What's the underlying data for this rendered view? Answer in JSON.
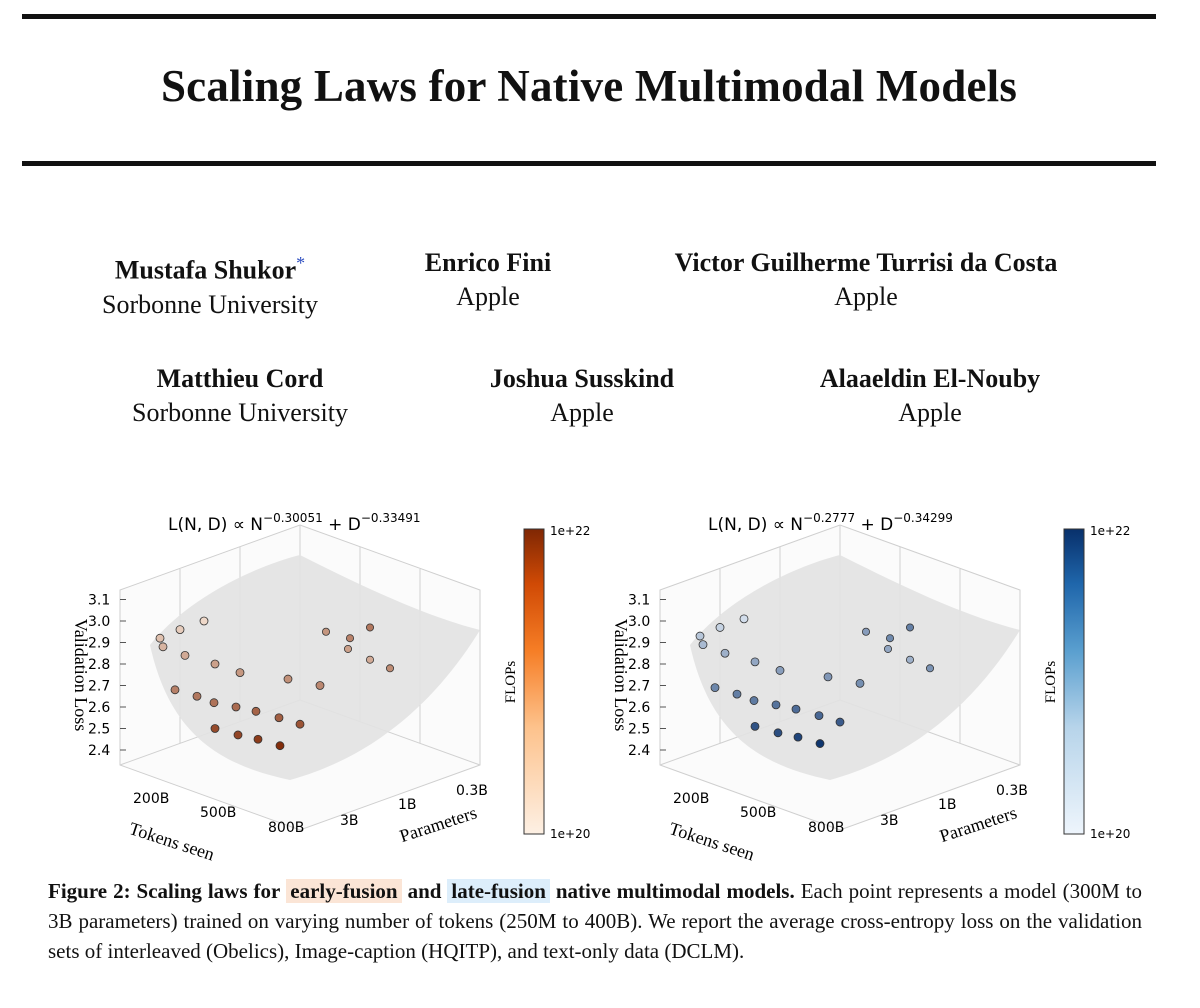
{
  "paper": {
    "title": "Scaling Laws for Native Multimodal Models",
    "authors": [
      {
        "name": "Mustafa Shukor",
        "affiliation": "Sorbonne University",
        "mark": "*"
      },
      {
        "name": "Enrico Fini",
        "affiliation": "Apple"
      },
      {
        "name": "Victor Guilherme Turrisi da Costa",
        "affiliation": "Apple"
      },
      {
        "name": "Matthieu Cord",
        "affiliation": "Sorbonne University"
      },
      {
        "name": "Joshua Susskind",
        "affiliation": "Apple"
      },
      {
        "name": "Alaaeldin El-Nouby",
        "affiliation": "Apple"
      }
    ]
  },
  "caption": {
    "lead": "Figure 2: Scaling laws for",
    "early": "early-fusion",
    "and": "and",
    "late": "late-fusion",
    "tail_bold": "native multimodal models.",
    "body": "Each point represents a model (300M to 3B parameters) trained on varying number of tokens (250M to 400B). We report the average cross-entropy loss on the validation sets of interleaved (Obelics), Image-caption (HQITP), and text-only data (DCLM)."
  },
  "chart_data": [
    {
      "type": "scatter3d",
      "name": "early-fusion",
      "title_expr": {
        "lhs": "L(N, D) ∝ N",
        "exp_n": "−0.30051",
        "mid": " + D",
        "exp_d": "−0.33491"
      },
      "zlabel": "Validation Loss",
      "xlabel": "Tokens seen",
      "ylabel": "Parameters",
      "z_ticks": [
        "2.4",
        "2.5",
        "2.6",
        "2.7",
        "2.8",
        "2.9",
        "3.0",
        "3.1"
      ],
      "x_ticks": [
        "200B",
        "500B",
        "800B"
      ],
      "y_ticks": [
        "0.3B",
        "1B",
        "3B"
      ],
      "colorbar": {
        "label": "FLOPs",
        "max": "1e+22",
        "min": "1e+20",
        "cmap": "orange",
        "color_low": "#fdf0e4",
        "color_high": "#7f2704"
      },
      "points": [
        {
          "loss": 2.42,
          "flops": 0.97
        },
        {
          "loss": 2.45,
          "flops": 0.9
        },
        {
          "loss": 2.47,
          "flops": 0.85
        },
        {
          "loss": 2.5,
          "flops": 0.82
        },
        {
          "loss": 2.52,
          "flops": 0.78
        },
        {
          "loss": 2.55,
          "flops": 0.72
        },
        {
          "loss": 2.58,
          "flops": 0.7
        },
        {
          "loss": 2.6,
          "flops": 0.66
        },
        {
          "loss": 2.62,
          "flops": 0.62
        },
        {
          "loss": 2.65,
          "flops": 0.6
        },
        {
          "loss": 2.68,
          "flops": 0.56
        },
        {
          "loss": 2.7,
          "flops": 0.52
        },
        {
          "loss": 2.73,
          "flops": 0.48
        },
        {
          "loss": 2.76,
          "flops": 0.44
        },
        {
          "loss": 2.8,
          "flops": 0.4
        },
        {
          "loss": 2.84,
          "flops": 0.35
        },
        {
          "loss": 2.88,
          "flops": 0.3
        },
        {
          "loss": 2.92,
          "flops": 0.24
        },
        {
          "loss": 2.96,
          "flops": 0.18
        },
        {
          "loss": 3.0,
          "flops": 0.12
        }
      ]
    },
    {
      "type": "scatter3d",
      "name": "late-fusion",
      "title_expr": {
        "lhs": "L(N, D) ∝ N",
        "exp_n": "−0.2777",
        "mid": " + D",
        "exp_d": "−0.34299"
      },
      "zlabel": "Validation Loss",
      "xlabel": "Tokens seen",
      "ylabel": "Parameters",
      "z_ticks": [
        "2.4",
        "2.5",
        "2.6",
        "2.7",
        "2.8",
        "2.9",
        "3.0",
        "3.1"
      ],
      "x_ticks": [
        "200B",
        "500B",
        "800B"
      ],
      "y_ticks": [
        "0.3B",
        "1B",
        "3B"
      ],
      "colorbar": {
        "label": "FLOPs",
        "max": "1e+22",
        "min": "1e+20",
        "cmap": "blue",
        "color_low": "#eef5fc",
        "color_high": "#08306b"
      },
      "points": [
        {
          "loss": 2.43,
          "flops": 0.97
        },
        {
          "loss": 2.46,
          "flops": 0.9
        },
        {
          "loss": 2.48,
          "flops": 0.85
        },
        {
          "loss": 2.51,
          "flops": 0.82
        },
        {
          "loss": 2.53,
          "flops": 0.78
        },
        {
          "loss": 2.56,
          "flops": 0.72
        },
        {
          "loss": 2.59,
          "flops": 0.7
        },
        {
          "loss": 2.61,
          "flops": 0.66
        },
        {
          "loss": 2.63,
          "flops": 0.62
        },
        {
          "loss": 2.66,
          "flops": 0.6
        },
        {
          "loss": 2.69,
          "flops": 0.56
        },
        {
          "loss": 2.71,
          "flops": 0.52
        },
        {
          "loss": 2.74,
          "flops": 0.48
        },
        {
          "loss": 2.77,
          "flops": 0.44
        },
        {
          "loss": 2.81,
          "flops": 0.4
        },
        {
          "loss": 2.85,
          "flops": 0.35
        },
        {
          "loss": 2.89,
          "flops": 0.3
        },
        {
          "loss": 2.93,
          "flops": 0.24
        },
        {
          "loss": 2.97,
          "flops": 0.18
        },
        {
          "loss": 3.01,
          "flops": 0.12
        }
      ]
    }
  ]
}
